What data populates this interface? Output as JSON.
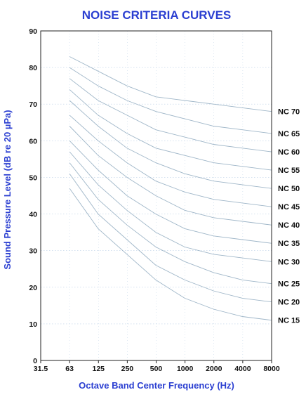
{
  "chart_data": {
    "type": "line",
    "title": "NOISE CRITERIA CURVES",
    "xlabel": "Octave Band Center Frequency (Hz)",
    "ylabel": "Sound Pressure Level (dB re 20 µPa)",
    "x_ticks": [
      "31.5",
      "63",
      "125",
      "250",
      "500",
      "1000",
      "2000",
      "4000",
      "8000"
    ],
    "y_ticks": [
      0,
      10,
      20,
      30,
      40,
      50,
      60,
      70,
      80,
      90
    ],
    "ylim": [
      0,
      90
    ],
    "x_scale": "log2",
    "grid": true,
    "x": [
      63,
      125,
      250,
      500,
      1000,
      2000,
      4000,
      8000
    ],
    "series": [
      {
        "name": "NC 70",
        "values": [
          83,
          79,
          75,
          72,
          71,
          70,
          69,
          68
        ]
      },
      {
        "name": "NC 65",
        "values": [
          80,
          75,
          71,
          68,
          66,
          64,
          63,
          62
        ]
      },
      {
        "name": "NC 60",
        "values": [
          77,
          71,
          67,
          63,
          61,
          59,
          58,
          57
        ]
      },
      {
        "name": "NC 55",
        "values": [
          74,
          67,
          62,
          58,
          56,
          54,
          53,
          52
        ]
      },
      {
        "name": "NC 50",
        "values": [
          71,
          64,
          58,
          54,
          51,
          49,
          48,
          47
        ]
      },
      {
        "name": "NC 45",
        "values": [
          67,
          60,
          54,
          49,
          46,
          44,
          43,
          42
        ]
      },
      {
        "name": "NC 40",
        "values": [
          64,
          56,
          50,
          45,
          41,
          39,
          38,
          37
        ]
      },
      {
        "name": "NC 35",
        "values": [
          60,
          52,
          45,
          40,
          36,
          34,
          33,
          32
        ]
      },
      {
        "name": "NC 30",
        "values": [
          57,
          48,
          41,
          35,
          31,
          29,
          28,
          27
        ]
      },
      {
        "name": "NC 25",
        "values": [
          54,
          44,
          37,
          31,
          27,
          24,
          22,
          21
        ]
      },
      {
        "name": "NC 20",
        "values": [
          51,
          40,
          33,
          26,
          22,
          19,
          17,
          16
        ]
      },
      {
        "name": "NC 15",
        "values": [
          47,
          36,
          29,
          22,
          17,
          14,
          12,
          11
        ]
      }
    ],
    "colors": {
      "title": "#2b3fd1",
      "axis_label": "#2b3fd1",
      "curve": "#9fb6c8",
      "grid": "#bcd0e6",
      "frame": "#222222",
      "tick_label": "#111111"
    }
  }
}
